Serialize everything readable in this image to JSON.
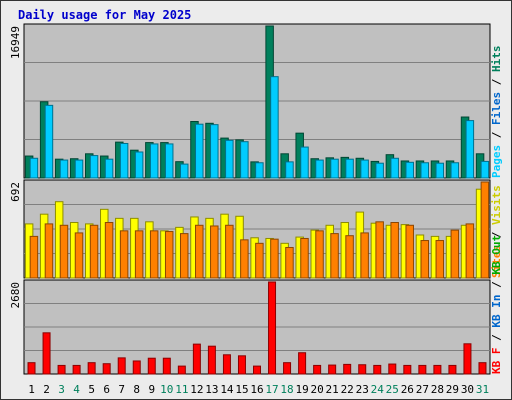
{
  "chart_data": [
    {
      "type": "bar",
      "title": "Daily usage for May 2025",
      "categories": [
        "1",
        "2",
        "3",
        "4",
        "5",
        "6",
        "7",
        "8",
        "9",
        "10",
        "11",
        "12",
        "13",
        "14",
        "15",
        "16",
        "17",
        "18",
        "19",
        "20",
        "21",
        "22",
        "23",
        "24",
        "25",
        "26",
        "27",
        "28",
        "29",
        "30",
        "31"
      ],
      "weekend_days": [
        "3",
        "4",
        "10",
        "11",
        "17",
        "18",
        "24",
        "25",
        "31"
      ],
      "y_max_label": "16949",
      "ylim": [
        0,
        16949
      ],
      "legend": [
        "Pages",
        "Files",
        "Hits"
      ],
      "series": [
        {
          "name": "Hits",
          "color": "#00805c",
          "values": [
            2450,
            8500,
            2100,
            2150,
            2700,
            2450,
            4000,
            3100,
            3950,
            3950,
            1820,
            6300,
            6100,
            4450,
            4250,
            1800,
            16949,
            2700,
            5000,
            2150,
            2250,
            2300,
            2200,
            1850,
            2600,
            1900,
            1900,
            1900,
            1900,
            6800,
            2700
          ]
        },
        {
          "name": "Files",
          "color": "#00ccff",
          "values": [
            2200,
            8100,
            2000,
            2000,
            2500,
            2100,
            3850,
            2900,
            3800,
            3800,
            1550,
            6000,
            5950,
            4200,
            4050,
            1700,
            11300,
            1800,
            3450,
            2000,
            2100,
            2100,
            2000,
            1650,
            2200,
            1750,
            1700,
            1650,
            1700,
            6400,
            1850
          ]
        }
      ]
    },
    {
      "type": "bar",
      "y_max_label": "692",
      "ylim": [
        0,
        692
      ],
      "legend": [
        "Sites",
        "Visits"
      ],
      "series": [
        {
          "name": "Visits",
          "color": "#ffff00",
          "values": [
            390,
            460,
            550,
            400,
            390,
            495,
            430,
            430,
            405,
            340,
            365,
            440,
            430,
            460,
            445,
            290,
            285,
            250,
            295,
            345,
            380,
            400,
            475,
            395,
            380,
            385,
            310,
            300,
            300,
            380,
            640
          ]
        },
        {
          "name": "Sites",
          "color": "#ff8000",
          "values": [
            300,
            390,
            380,
            325,
            380,
            400,
            340,
            340,
            340,
            335,
            320,
            380,
            375,
            380,
            275,
            250,
            280,
            220,
            285,
            340,
            320,
            305,
            325,
            405,
            400,
            380,
            270,
            270,
            345,
            390,
            692
          ]
        }
      ]
    },
    {
      "type": "bar",
      "y_max_label": "2680",
      "ylim": [
        0,
        2680
      ],
      "legend": [
        "KB F",
        "KB In",
        "KB Out"
      ],
      "series": [
        {
          "name": "KB F",
          "color": "#ff0000",
          "values": [
            330,
            1200,
            250,
            250,
            330,
            300,
            470,
            380,
            460,
            460,
            230,
            870,
            810,
            560,
            530,
            230,
            2680,
            330,
            620,
            250,
            260,
            280,
            270,
            250,
            290,
            250,
            250,
            250,
            250,
            880,
            330
          ]
        }
      ]
    }
  ]
}
